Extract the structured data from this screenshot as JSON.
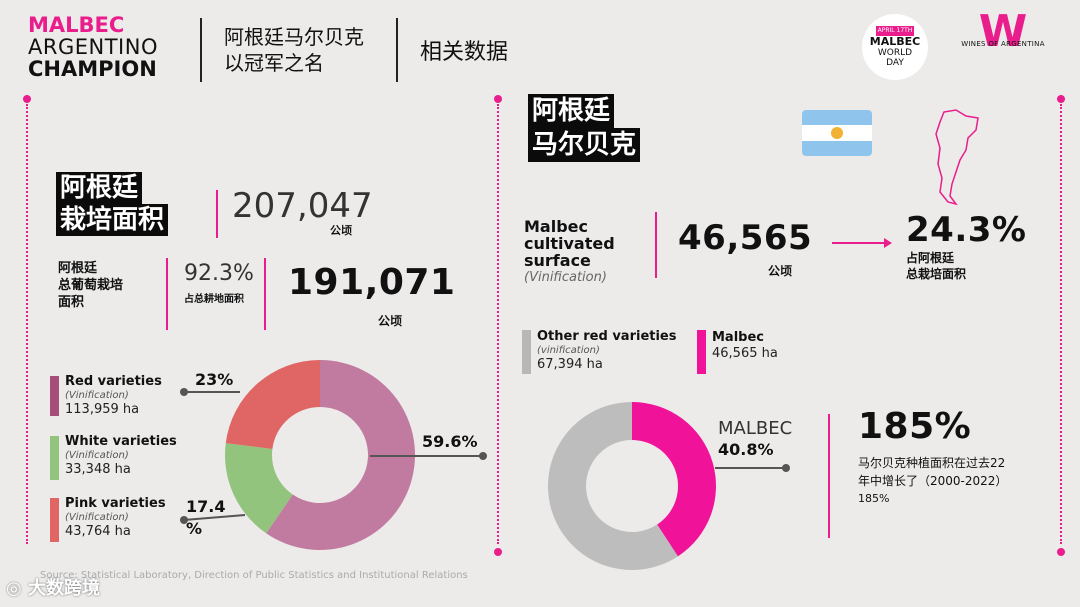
{
  "header": {
    "brand": [
      "MALBEC",
      "ARGENTINO",
      "CHAMPION"
    ],
    "subtitle_line1": "阿根廷马尔贝克",
    "subtitle_line2": "以冠军之名",
    "section": "相关数据",
    "logo1": {
      "top": "APRIL 17TH",
      "l1": "MALBEC",
      "l2": "WORLD",
      "l3": "DAY"
    },
    "logo2": {
      "text": "WINES OF ARGENTINA",
      "glyph": "W"
    }
  },
  "left": {
    "area_title_1": "阿根廷",
    "area_title_2": "栽培面积",
    "area_value": "207,047",
    "area_unit": "公顷",
    "vine_label_1": "阿根廷",
    "vine_label_2": "总葡萄栽培",
    "vine_label_3": "面积",
    "vine_pct": "92.3%",
    "vine_pct_label": "占总耕地面积",
    "vine_value": "191,071",
    "vine_unit": "公顷"
  },
  "right": {
    "title_1": "阿根廷",
    "title_2": "马尔贝克",
    "malbec_label_1": "Malbec",
    "malbec_label_2": "cultivated",
    "malbec_label_3": "surface",
    "malbec_label_4": "(Vinification)",
    "malbec_value": "46,565",
    "malbec_unit": "公顷",
    "share_pct": "24.3%",
    "share_label_1": "占阿根廷",
    "share_label_2": "总栽培面积",
    "other_title": "Other red varieties",
    "other_sub": "(vinification)",
    "other_val": "67,394 ha",
    "malbec_title": "Malbec",
    "malbec_val": "46,565 ha",
    "donut_label": "MALBEC",
    "donut_pct": "40.8%",
    "growth_pct": "185%",
    "growth_text_1": "马尔贝克种植面积在过去22",
    "growth_text_2": "年中增长了（2000-2022）",
    "growth_text_3": "185%"
  },
  "footer": {
    "source": "Source: Statistical Laboratory, Direction of Public Statistics and Institutional Relations",
    "watermark": "大数跨境"
  },
  "chart_data": [
    {
      "type": "pie",
      "variant": "donut",
      "categories": [
        "Red varieties",
        "White varieties",
        "Pink varieties"
      ],
      "sublabel": "(Vinification)",
      "hectares": [
        113959,
        33348,
        43764
      ],
      "hectare_labels": [
        "113,959 ha",
        "33,348 ha",
        "43,764 ha"
      ],
      "values": [
        59.6,
        17.4,
        23.0
      ],
      "data_labels": [
        "59.6%",
        "17.4\n%",
        "23%"
      ],
      "colors": [
        "#c27ba0",
        "#93c47d",
        "#e06666"
      ]
    },
    {
      "type": "pie",
      "variant": "donut",
      "categories": [
        "Other red varieties",
        "Malbec"
      ],
      "hectares": [
        67394,
        46565
      ],
      "values": [
        59.2,
        40.8
      ],
      "colors": [
        "#bdbdbd",
        "#f0139a"
      ]
    }
  ]
}
